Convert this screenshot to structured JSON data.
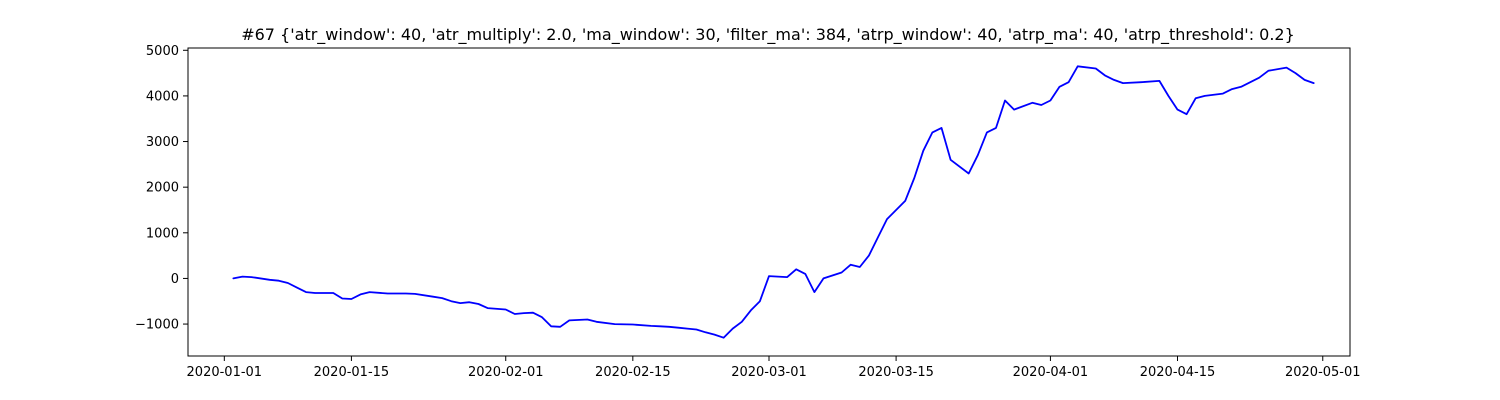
{
  "chart_data": {
    "type": "line",
    "title": "#67 {'atr_window': 40, 'atr_multiply': 2.0, 'ma_window': 30, 'filter_ma': 384, 'atrp_window': 40, 'atrp_ma': 40, 'atrp_threshold': 0.2}",
    "xlabel": "",
    "ylabel": "",
    "x_axis": {
      "type": "date",
      "range": [
        "2019-12-28",
        "2020-05-04"
      ],
      "ticks": [
        "2020-01-01",
        "2020-01-15",
        "2020-02-01",
        "2020-02-15",
        "2020-03-01",
        "2020-03-15",
        "2020-04-01",
        "2020-04-15",
        "2020-05-01"
      ]
    },
    "y_axis": {
      "range": [
        -1700,
        5050
      ],
      "ticks": [
        -1000,
        0,
        1000,
        2000,
        3000,
        4000,
        5000
      ]
    },
    "grid": false,
    "legend": "none",
    "series": [
      {
        "color": "#0000ff",
        "points": [
          [
            "2020-01-02",
            0
          ],
          [
            "2020-01-03",
            40
          ],
          [
            "2020-01-04",
            30
          ],
          [
            "2020-01-06",
            -30
          ],
          [
            "2020-01-07",
            -50
          ],
          [
            "2020-01-08",
            -100
          ],
          [
            "2020-01-09",
            -200
          ],
          [
            "2020-01-10",
            -300
          ],
          [
            "2020-01-11",
            -320
          ],
          [
            "2020-01-13",
            -320
          ],
          [
            "2020-01-14",
            -440
          ],
          [
            "2020-01-15",
            -450
          ],
          [
            "2020-01-16",
            -350
          ],
          [
            "2020-01-17",
            -300
          ],
          [
            "2020-01-19",
            -330
          ],
          [
            "2020-01-21",
            -330
          ],
          [
            "2020-01-22",
            -340
          ],
          [
            "2020-01-24",
            -400
          ],
          [
            "2020-01-25",
            -430
          ],
          [
            "2020-01-26",
            -500
          ],
          [
            "2020-01-27",
            -540
          ],
          [
            "2020-01-28",
            -520
          ],
          [
            "2020-01-29",
            -560
          ],
          [
            "2020-01-30",
            -650
          ],
          [
            "2020-02-01",
            -680
          ],
          [
            "2020-02-02",
            -780
          ],
          [
            "2020-02-03",
            -760
          ],
          [
            "2020-02-04",
            -750
          ],
          [
            "2020-02-05",
            -850
          ],
          [
            "2020-02-06",
            -1050
          ],
          [
            "2020-02-07",
            -1060
          ],
          [
            "2020-02-08",
            -920
          ],
          [
            "2020-02-10",
            -900
          ],
          [
            "2020-02-11",
            -950
          ],
          [
            "2020-02-13",
            -1000
          ],
          [
            "2020-02-15",
            -1010
          ],
          [
            "2020-02-17",
            -1040
          ],
          [
            "2020-02-18",
            -1050
          ],
          [
            "2020-02-19",
            -1060
          ],
          [
            "2020-02-20",
            -1080
          ],
          [
            "2020-02-21",
            -1100
          ],
          [
            "2020-02-22",
            -1120
          ],
          [
            "2020-02-23",
            -1180
          ],
          [
            "2020-02-24",
            -1230
          ],
          [
            "2020-02-25",
            -1300
          ],
          [
            "2020-02-26",
            -1100
          ],
          [
            "2020-02-27",
            -950
          ],
          [
            "2020-02-28",
            -700
          ],
          [
            "2020-02-29",
            -500
          ],
          [
            "2020-03-01",
            50
          ],
          [
            "2020-03-03",
            30
          ],
          [
            "2020-03-04",
            200
          ],
          [
            "2020-03-05",
            100
          ],
          [
            "2020-03-06",
            -300
          ],
          [
            "2020-03-07",
            0
          ],
          [
            "2020-03-09",
            130
          ],
          [
            "2020-03-10",
            300
          ],
          [
            "2020-03-11",
            250
          ],
          [
            "2020-03-12",
            500
          ],
          [
            "2020-03-13",
            900
          ],
          [
            "2020-03-14",
            1300
          ],
          [
            "2020-03-16",
            1700
          ],
          [
            "2020-03-17",
            2200
          ],
          [
            "2020-03-18",
            2800
          ],
          [
            "2020-03-19",
            3200
          ],
          [
            "2020-03-20",
            3300
          ],
          [
            "2020-03-21",
            2600
          ],
          [
            "2020-03-23",
            2300
          ],
          [
            "2020-03-24",
            2700
          ],
          [
            "2020-03-25",
            3200
          ],
          [
            "2020-03-26",
            3300
          ],
          [
            "2020-03-27",
            3900
          ],
          [
            "2020-03-28",
            3700
          ],
          [
            "2020-03-30",
            3850
          ],
          [
            "2020-03-31",
            3800
          ],
          [
            "2020-04-01",
            3900
          ],
          [
            "2020-04-02",
            4200
          ],
          [
            "2020-04-03",
            4300
          ],
          [
            "2020-04-04",
            4650
          ],
          [
            "2020-04-06",
            4600
          ],
          [
            "2020-04-07",
            4450
          ],
          [
            "2020-04-08",
            4350
          ],
          [
            "2020-04-09",
            4280
          ],
          [
            "2020-04-11",
            4300
          ],
          [
            "2020-04-13",
            4330
          ],
          [
            "2020-04-14",
            4000
          ],
          [
            "2020-04-15",
            3700
          ],
          [
            "2020-04-16",
            3600
          ],
          [
            "2020-04-17",
            3950
          ],
          [
            "2020-04-18",
            4000
          ],
          [
            "2020-04-20",
            4050
          ],
          [
            "2020-04-21",
            4150
          ],
          [
            "2020-04-22",
            4200
          ],
          [
            "2020-04-24",
            4400
          ],
          [
            "2020-04-25",
            4550
          ],
          [
            "2020-04-27",
            4620
          ],
          [
            "2020-04-28",
            4500
          ],
          [
            "2020-04-29",
            4350
          ],
          [
            "2020-04-30",
            4280
          ]
        ]
      }
    ]
  }
}
